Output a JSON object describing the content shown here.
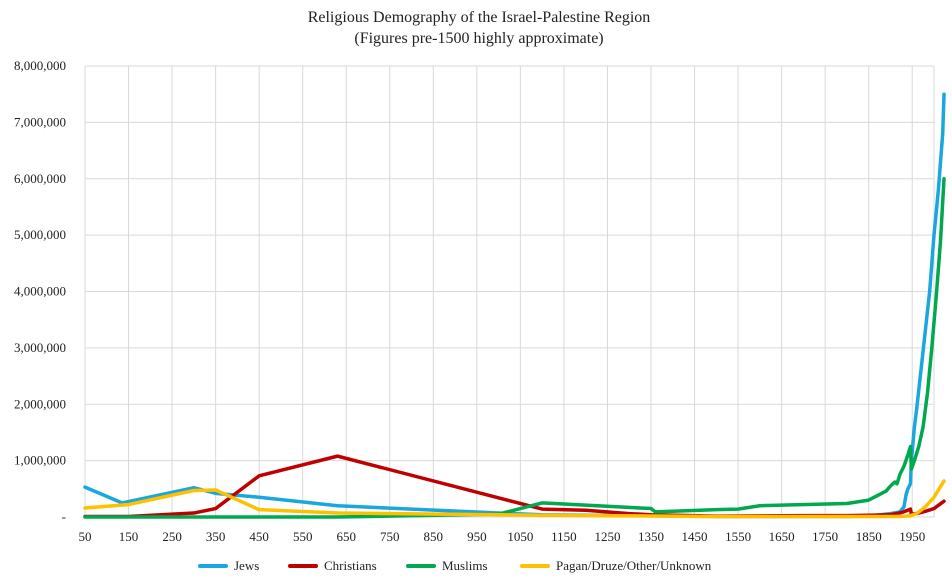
{
  "chart_data": {
    "type": "line",
    "title": "Religious Demography of the Israel-Palestine Region",
    "subtitle": "(Figures pre-1500 highly approximate)",
    "xlabel": "",
    "ylabel": "",
    "xlim": [
      50,
      2000
    ],
    "ylim": [
      0,
      8000000
    ],
    "x_ticks": [
      "50",
      "150",
      "250",
      "350",
      "450",
      "550",
      "650",
      "750",
      "850",
      "950",
      "1050",
      "1150",
      "1250",
      "1350",
      "1450",
      "1550",
      "1650",
      "1750",
      "1850",
      "1950"
    ],
    "y_ticks": [
      "-",
      "1,000,000",
      "2,000,000",
      "3,000,000",
      "4,000,000",
      "5,000,000",
      "6,000,000",
      "7,000,000",
      "8,000,000"
    ],
    "y_tick_values": [
      0,
      1000000,
      2000000,
      3000000,
      4000000,
      5000000,
      6000000,
      7000000,
      8000000
    ],
    "grid": true,
    "legend_position": "bottom",
    "series": [
      {
        "name": "Jews",
        "color": "#1aa7e0",
        "points": [
          [
            50,
            530000
          ],
          [
            135,
            250000
          ],
          [
            300,
            520000
          ],
          [
            350,
            420000
          ],
          [
            450,
            350000
          ],
          [
            630,
            200000
          ],
          [
            1000,
            70000
          ],
          [
            1100,
            40000
          ],
          [
            1300,
            25000
          ],
          [
            1500,
            10000
          ],
          [
            1700,
            10000
          ],
          [
            1800,
            10000
          ],
          [
            1850,
            15000
          ],
          [
            1900,
            60000
          ],
          [
            1915,
            80000
          ],
          [
            1922,
            95000
          ],
          [
            1931,
            180000
          ],
          [
            1936,
            400000
          ],
          [
            1940,
            500000
          ],
          [
            1944,
            560000
          ],
          [
            1946,
            600000
          ],
          [
            1948,
            1000000
          ],
          [
            1955,
            1600000
          ],
          [
            1960,
            1900000
          ],
          [
            1970,
            2600000
          ],
          [
            1980,
            3300000
          ],
          [
            1990,
            4000000
          ],
          [
            2000,
            5000000
          ],
          [
            2010,
            5800000
          ],
          [
            2020,
            6800000
          ],
          [
            2023,
            7500000
          ]
        ]
      },
      {
        "name": "Christians",
        "color": "#c00000",
        "points": [
          [
            50,
            10000
          ],
          [
            150,
            10000
          ],
          [
            300,
            70000
          ],
          [
            350,
            150000
          ],
          [
            450,
            730000
          ],
          [
            630,
            1080000
          ],
          [
            1100,
            140000
          ],
          [
            1200,
            120000
          ],
          [
            1300,
            60000
          ],
          [
            1350,
            40000
          ],
          [
            1500,
            15000
          ],
          [
            1600,
            20000
          ],
          [
            1700,
            25000
          ],
          [
            1800,
            25000
          ],
          [
            1850,
            30000
          ],
          [
            1900,
            40000
          ],
          [
            1920,
            70000
          ],
          [
            1930,
            90000
          ],
          [
            1946,
            140000
          ],
          [
            1948,
            50000
          ],
          [
            1960,
            60000
          ],
          [
            1980,
            100000
          ],
          [
            2000,
            150000
          ],
          [
            2023,
            280000
          ]
        ]
      },
      {
        "name": "Muslims",
        "color": "#00a84f",
        "points": [
          [
            50,
            0
          ],
          [
            600,
            0
          ],
          [
            630,
            0
          ],
          [
            1000,
            50000
          ],
          [
            1100,
            250000
          ],
          [
            1350,
            150000
          ],
          [
            1360,
            90000
          ],
          [
            1500,
            130000
          ],
          [
            1550,
            140000
          ],
          [
            1600,
            200000
          ],
          [
            1800,
            240000
          ],
          [
            1850,
            300000
          ],
          [
            1870,
            380000
          ],
          [
            1890,
            460000
          ],
          [
            1900,
            550000
          ],
          [
            1910,
            620000
          ],
          [
            1915,
            590000
          ],
          [
            1922,
            760000
          ],
          [
            1931,
            900000
          ],
          [
            1940,
            1100000
          ],
          [
            1946,
            1250000
          ],
          [
            1948,
            850000
          ],
          [
            1955,
            1000000
          ],
          [
            1965,
            1250000
          ],
          [
            1975,
            1600000
          ],
          [
            1985,
            2200000
          ],
          [
            1995,
            3000000
          ],
          [
            2005,
            3900000
          ],
          [
            2015,
            4900000
          ],
          [
            2023,
            6000000
          ]
        ]
      },
      {
        "name": "Pagan/Druze/Other/Unknown",
        "color": "#ffc000",
        "points": [
          [
            50,
            160000
          ],
          [
            150,
            220000
          ],
          [
            300,
            470000
          ],
          [
            350,
            480000
          ],
          [
            450,
            130000
          ],
          [
            630,
            70000
          ],
          [
            1000,
            40000
          ],
          [
            1100,
            30000
          ],
          [
            1300,
            20000
          ],
          [
            1500,
            10000
          ],
          [
            1700,
            10000
          ],
          [
            1800,
            10000
          ],
          [
            1900,
            10000
          ],
          [
            1922,
            10000
          ],
          [
            1946,
            20000
          ],
          [
            1948,
            30000
          ],
          [
            1960,
            60000
          ],
          [
            1980,
            180000
          ],
          [
            2000,
            350000
          ],
          [
            2023,
            640000
          ]
        ]
      }
    ]
  }
}
